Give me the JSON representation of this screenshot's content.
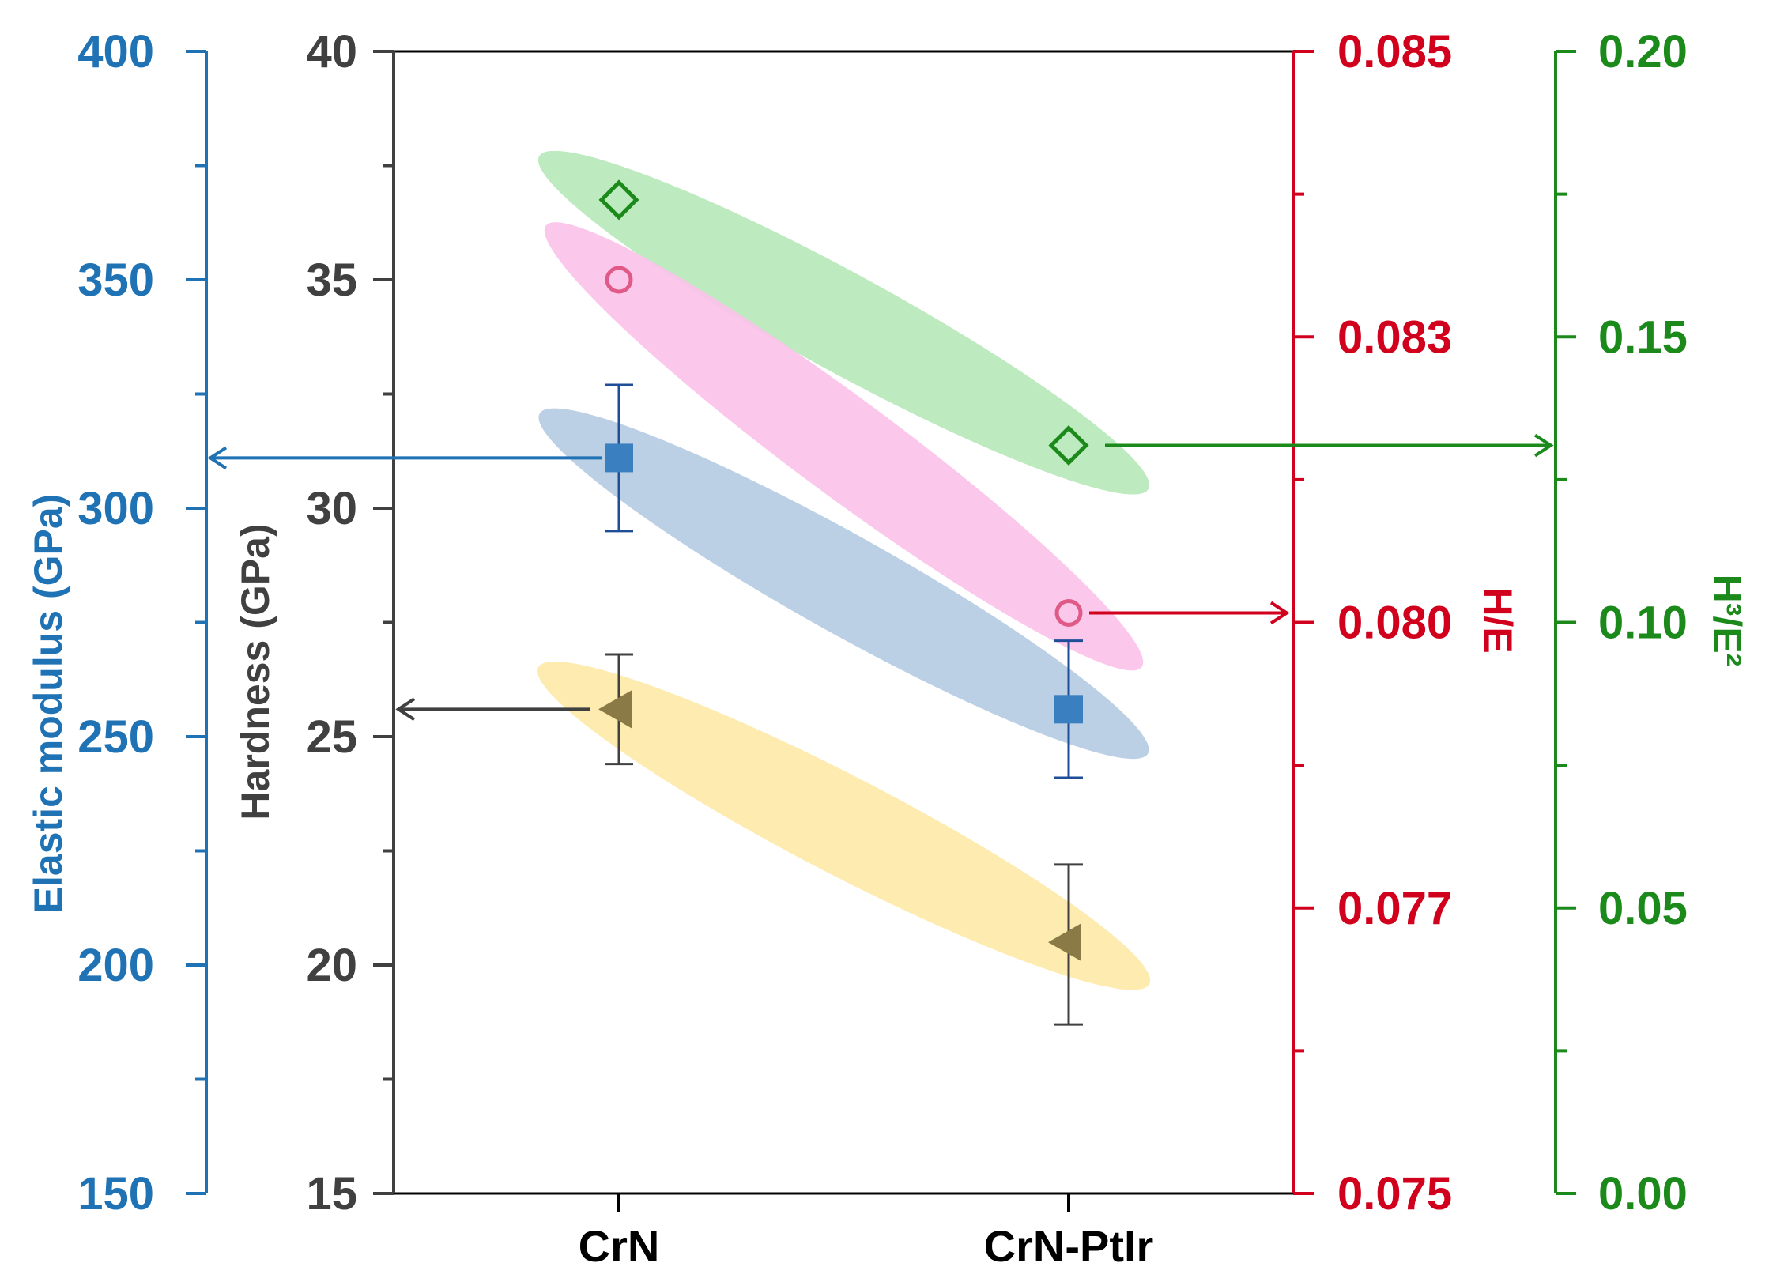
{
  "chart_data": {
    "type": "scatter",
    "categories": [
      "CrN",
      "CrN-PtIr"
    ],
    "axes": {
      "elastic_modulus": {
        "label": "Elastic modulus (GPa)",
        "range": [
          150,
          400
        ],
        "ticks": [
          "150",
          "200",
          "250",
          "300",
          "350",
          "400"
        ],
        "color": "#1f72b4"
      },
      "hardness": {
        "label": "Hardness (GPa)",
        "range": [
          15,
          40
        ],
        "ticks": [
          "15",
          "20",
          "25",
          "30",
          "35",
          "40"
        ],
        "color": "#404040"
      },
      "h_over_e": {
        "label": "H/E",
        "range": [
          0.075,
          0.085
        ],
        "ticks": [
          "0.075",
          "0.077",
          "0.080",
          "0.083",
          "0.085"
        ],
        "color": "#d1001c"
      },
      "h3_over_e2": {
        "label": "H³/E²",
        "range": [
          0,
          0.2
        ],
        "ticks": [
          "0.00",
          "0.05",
          "0.10",
          "0.15",
          "0.20"
        ],
        "color": "#1b8a1b"
      }
    },
    "series": [
      {
        "name": "Hardness",
        "axis": "hardness",
        "marker": "triangle-left",
        "color": "#8a7a45",
        "band_color": "#fde9a6",
        "values": [
          25.6,
          20.5
        ],
        "error": [
          [
            24.4,
            26.8
          ],
          [
            18.7,
            22.2
          ]
        ]
      },
      {
        "name": "Elastic modulus",
        "axis": "elastic_modulus",
        "marker": "square",
        "color": "#3a7fbf",
        "band_color": "#b5cbe2",
        "values": [
          311,
          256
        ],
        "error": [
          [
            295,
            327
          ],
          [
            241,
            271
          ]
        ]
      },
      {
        "name": "H/E",
        "axis": "h_over_e",
        "marker": "circle-open",
        "color": "#e05a87",
        "band_color": "#fbc2ea",
        "values": [
          0.0834,
          0.0801
        ]
      },
      {
        "name": "H³/E²",
        "axis": "h3_over_e2",
        "marker": "diamond-open",
        "color": "#1b8a1b",
        "band_color": "#b6e8b8",
        "values": [
          0.174,
          0.131
        ]
      }
    ]
  }
}
